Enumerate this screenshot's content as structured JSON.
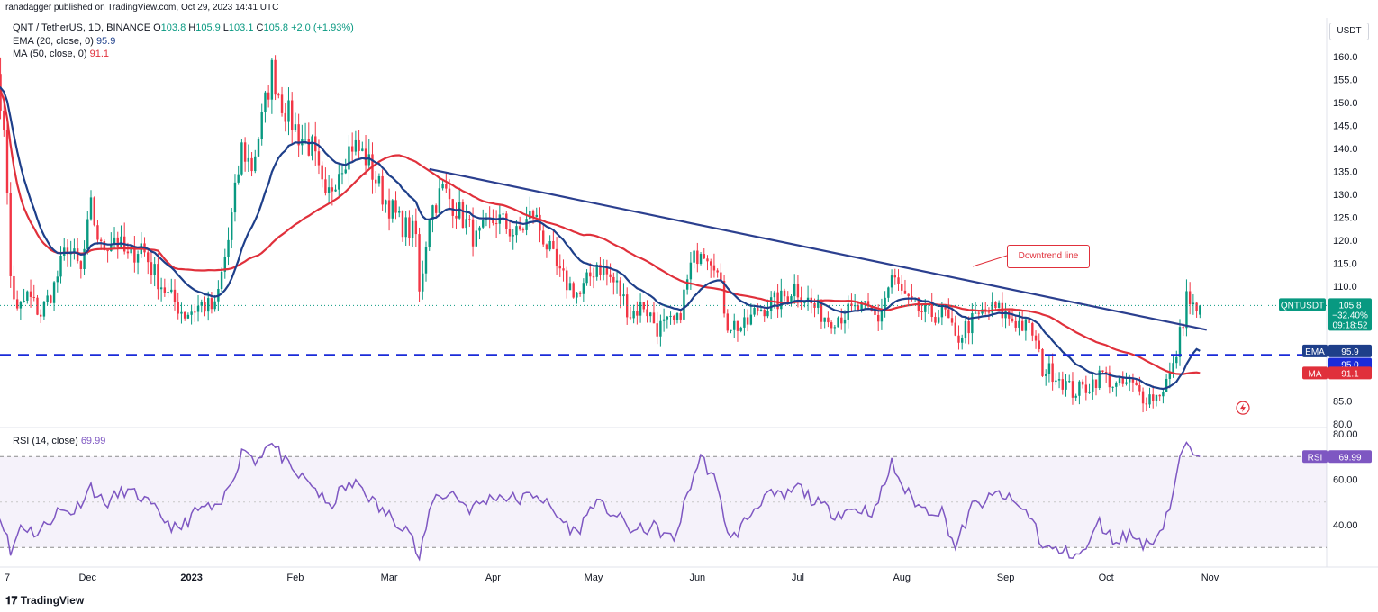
{
  "publisher": "ranadagger published on TradingView.com, Oct 29, 2023 14:41 UTC",
  "brand": "TradingView",
  "currency_button": "USDT",
  "legend": {
    "symbol": "QNT / TetherUS, 1D, BINANCE",
    "o_label": "O",
    "o": "103.8",
    "h_label": "H",
    "h": "105.9",
    "l_label": "L",
    "l": "103.1",
    "c_label": "C",
    "c": "105.8",
    "chg": "+2.0 (+1.93%)",
    "ema_label": "EMA (20, close, 0)",
    "ema_value": "95.9",
    "ma_label": "MA (50, close, 0)",
    "ma_value": "91.1",
    "rsi_label": "RSI (14, close)",
    "rsi_value": "69.99"
  },
  "annotation": "Downtrend line",
  "price_badges": {
    "ticker": "QNTUSDT",
    "price": "105.8",
    "change": "−32.40%",
    "countdown": "09:18:52",
    "ema_tag": "EMA",
    "ema": "95.9",
    "level_value": "95.0",
    "ma_tag": "MA",
    "ma": "91.1",
    "rsi_tag": "RSI",
    "rsi": "69.99"
  },
  "colors": {
    "up": "#089981",
    "down": "#f23645",
    "ema": "#1e3f8a",
    "ma": "#e0303b",
    "rsi": "#7e57c2",
    "support": "#1a2bd8",
    "trend": "#2b3f8f"
  },
  "chart_data": [
    {
      "type": "candlestick",
      "title": "QNT / TetherUS, 1D, BINANCE",
      "y_axis_ticks": [
        80,
        85,
        90,
        95,
        100,
        105,
        110,
        115,
        120,
        125,
        130,
        135,
        140,
        145,
        150,
        155,
        160
      ],
      "y_axis_labels": [
        "80.0",
        "85.0",
        "",
        "",
        "",
        "",
        "110.0",
        "115.0",
        "120.0",
        "125.0",
        "130.0",
        "135.0",
        "140.0",
        "145.0",
        "150.0",
        "155.0",
        "160.0"
      ],
      "ylim": [
        79.5,
        166
      ],
      "x_axis_labels": [
        "7",
        "Dec",
        "2023",
        "Feb",
        "Mar",
        "Apr",
        "May",
        "Jun",
        "Jul",
        "Aug",
        "Sep",
        "Oct",
        "Nov"
      ],
      "x_axis_dates": [
        "2022-11-07",
        "2022-12-01",
        "2023-01-01",
        "2023-02-01",
        "2023-03-01",
        "2023-04-01",
        "2023-05-01",
        "2023-06-01",
        "2023-07-01",
        "2023-08-01",
        "2023-09-01",
        "2023-10-01",
        "2023-11-01"
      ],
      "close_anchors": [
        [
          "2022-11-03",
          157
        ],
        [
          "2022-11-06",
          146
        ],
        [
          "2022-11-08",
          112
        ],
        [
          "2022-11-10",
          104
        ],
        [
          "2022-11-13",
          108
        ],
        [
          "2022-11-17",
          104
        ],
        [
          "2022-11-21",
          110
        ],
        [
          "2022-11-25",
          119
        ],
        [
          "2022-11-29",
          113
        ],
        [
          "2022-12-02",
          127
        ],
        [
          "2022-12-05",
          118
        ],
        [
          "2022-12-09",
          121
        ],
        [
          "2022-12-13",
          116
        ],
        [
          "2022-12-17",
          119
        ],
        [
          "2022-12-20",
          114
        ],
        [
          "2022-12-25",
          108
        ],
        [
          "2022-12-30",
          104
        ],
        [
          "2023-01-04",
          106
        ],
        [
          "2023-01-08",
          105
        ],
        [
          "2023-01-12",
          120
        ],
        [
          "2023-01-16",
          140
        ],
        [
          "2023-01-19",
          136
        ],
        [
          "2023-01-22",
          146
        ],
        [
          "2023-01-25",
          157
        ],
        [
          "2023-01-28",
          150
        ],
        [
          "2023-02-02",
          143
        ],
        [
          "2023-02-06",
          140
        ],
        [
          "2023-02-10",
          128
        ],
        [
          "2023-02-14",
          136
        ],
        [
          "2023-02-18",
          141
        ],
        [
          "2023-02-22",
          138
        ],
        [
          "2023-02-27",
          130
        ],
        [
          "2023-03-04",
          124
        ],
        [
          "2023-03-09",
          121
        ],
        [
          "2023-03-10",
          108
        ],
        [
          "2023-03-13",
          126
        ],
        [
          "2023-03-17",
          131
        ],
        [
          "2023-03-22",
          126
        ],
        [
          "2023-03-27",
          120
        ],
        [
          "2023-04-02",
          125
        ],
        [
          "2023-04-08",
          121
        ],
        [
          "2023-04-13",
          126
        ],
        [
          "2023-04-17",
          119
        ],
        [
          "2023-04-21",
          112
        ],
        [
          "2023-04-27",
          108
        ],
        [
          "2023-05-02",
          115
        ],
        [
          "2023-05-08",
          110
        ],
        [
          "2023-05-12",
          104
        ],
        [
          "2023-05-16",
          106
        ],
        [
          "2023-05-20",
          101
        ],
        [
          "2023-05-26",
          102
        ],
        [
          "2023-05-30",
          114
        ],
        [
          "2023-06-02",
          119
        ],
        [
          "2023-06-06",
          116
        ],
        [
          "2023-06-10",
          102
        ],
        [
          "2023-06-15",
          101
        ],
        [
          "2023-06-19",
          105
        ],
        [
          "2023-06-26",
          107
        ],
        [
          "2023-06-30",
          110
        ],
        [
          "2023-07-05",
          106
        ],
        [
          "2023-07-10",
          103
        ],
        [
          "2023-07-15",
          104
        ],
        [
          "2023-07-20",
          105
        ],
        [
          "2023-07-25",
          103
        ],
        [
          "2023-07-29",
          112
        ],
        [
          "2023-08-03",
          106
        ],
        [
          "2023-08-08",
          104
        ],
        [
          "2023-08-14",
          104
        ],
        [
          "2023-08-17",
          98
        ],
        [
          "2023-08-20",
          101
        ],
        [
          "2023-08-25",
          104
        ],
        [
          "2023-08-29",
          105
        ],
        [
          "2023-09-05",
          102
        ],
        [
          "2023-09-09",
          100
        ],
        [
          "2023-09-12",
          92
        ],
        [
          "2023-09-16",
          91
        ],
        [
          "2023-09-21",
          87
        ],
        [
          "2023-09-25",
          88
        ],
        [
          "2023-09-30",
          91
        ],
        [
          "2023-10-04",
          88
        ],
        [
          "2023-10-08",
          89
        ],
        [
          "2023-10-12",
          86
        ],
        [
          "2023-10-16",
          86
        ],
        [
          "2023-10-18",
          88
        ],
        [
          "2023-10-21",
          92
        ],
        [
          "2023-10-24",
          103
        ],
        [
          "2023-10-25",
          108
        ],
        [
          "2023-10-27",
          105
        ],
        [
          "2023-10-28",
          103.8
        ],
        [
          "2023-10-29",
          105.8
        ]
      ],
      "horizontal_level": {
        "value": 95.0,
        "label": "95.0"
      },
      "trendline": {
        "start": [
          "2023-03-13",
          135.5
        ],
        "end": [
          "2023-10-31",
          100.5
        ],
        "label": "Downtrend line"
      },
      "series": [
        {
          "name": "EMA (20, close, 0)",
          "last": 95.9
        },
        {
          "name": "MA (50, close, 0)",
          "last": 91.1
        }
      ],
      "last_price": 105.8,
      "last_ohlc": {
        "open": 103.8,
        "high": 105.9,
        "low": 103.1,
        "close": 105.8
      }
    },
    {
      "type": "line",
      "title": "RSI (14, close)",
      "y_axis_ticks": [
        40,
        60,
        80
      ],
      "y_axis_labels": [
        "40.00",
        "60.00",
        "80.00"
      ],
      "ylim": [
        20,
        82
      ],
      "bands": [
        30,
        70
      ],
      "last": 69.99,
      "rsi_anchors": [
        [
          "2022-11-03",
          48
        ],
        [
          "2022-11-06",
          40
        ],
        [
          "2022-11-08",
          27
        ],
        [
          "2022-11-11",
          40
        ],
        [
          "2022-11-16",
          36
        ],
        [
          "2022-11-22",
          46
        ],
        [
          "2022-11-27",
          46
        ],
        [
          "2022-12-02",
          57
        ],
        [
          "2022-12-06",
          49
        ],
        [
          "2022-12-12",
          55
        ],
        [
          "2022-12-17",
          52
        ],
        [
          "2022-12-22",
          45
        ],
        [
          "2022-12-28",
          37
        ],
        [
          "2023-01-01",
          44
        ],
        [
          "2023-01-05",
          48
        ],
        [
          "2023-01-09",
          46
        ],
        [
          "2023-01-13",
          60
        ],
        [
          "2023-01-17",
          75
        ],
        [
          "2023-01-20",
          67
        ],
        [
          "2023-01-24",
          77
        ],
        [
          "2023-01-27",
          72
        ],
        [
          "2023-01-31",
          63
        ],
        [
          "2023-02-06",
          58
        ],
        [
          "2023-02-11",
          47
        ],
        [
          "2023-02-15",
          56
        ],
        [
          "2023-02-20",
          58
        ],
        [
          "2023-02-26",
          47
        ],
        [
          "2023-03-03",
          42
        ],
        [
          "2023-03-07",
          38
        ],
        [
          "2023-03-10",
          24
        ],
        [
          "2023-03-14",
          52
        ],
        [
          "2023-03-20",
          54
        ],
        [
          "2023-03-25",
          47
        ],
        [
          "2023-04-02",
          53
        ],
        [
          "2023-04-09",
          51
        ],
        [
          "2023-04-14",
          54
        ],
        [
          "2023-04-20",
          44
        ],
        [
          "2023-04-26",
          36
        ],
        [
          "2023-05-01",
          50
        ],
        [
          "2023-05-07",
          45
        ],
        [
          "2023-05-13",
          37
        ],
        [
          "2023-05-19",
          39
        ],
        [
          "2023-05-25",
          33
        ],
        [
          "2023-05-30",
          58
        ],
        [
          "2023-06-02",
          70
        ],
        [
          "2023-06-06",
          60
        ],
        [
          "2023-06-11",
          33
        ],
        [
          "2023-06-16",
          43
        ],
        [
          "2023-06-21",
          53
        ],
        [
          "2023-06-27",
          52
        ],
        [
          "2023-07-01",
          57
        ],
        [
          "2023-07-06",
          50
        ],
        [
          "2023-07-12",
          45
        ],
        [
          "2023-07-18",
          47
        ],
        [
          "2023-07-24",
          46
        ],
        [
          "2023-07-29",
          67
        ],
        [
          "2023-08-02",
          55
        ],
        [
          "2023-08-07",
          47
        ],
        [
          "2023-08-13",
          46
        ],
        [
          "2023-08-17",
          30
        ],
        [
          "2023-08-22",
          48
        ],
        [
          "2023-08-27",
          51
        ],
        [
          "2023-08-30",
          54
        ],
        [
          "2023-09-05",
          48
        ],
        [
          "2023-09-09",
          43
        ],
        [
          "2023-09-12",
          30
        ],
        [
          "2023-09-18",
          28
        ],
        [
          "2023-09-24",
          27
        ],
        [
          "2023-09-29",
          41
        ],
        [
          "2023-10-03",
          33
        ],
        [
          "2023-10-08",
          36
        ],
        [
          "2023-10-13",
          31
        ],
        [
          "2023-10-17",
          37
        ],
        [
          "2023-10-20",
          48
        ],
        [
          "2023-10-23",
          68
        ],
        [
          "2023-10-25",
          77
        ],
        [
          "2023-10-27",
          68
        ],
        [
          "2023-10-29",
          69.99
        ]
      ]
    }
  ]
}
